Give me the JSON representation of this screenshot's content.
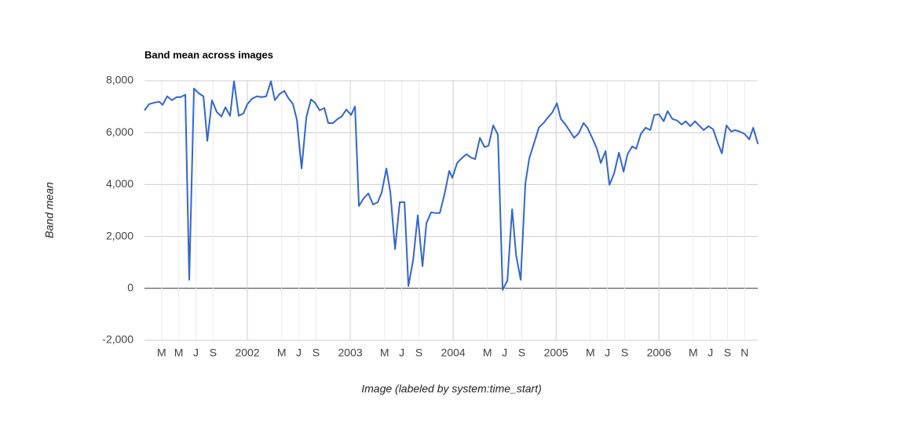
{
  "chart_data": {
    "type": "line",
    "title": "Band mean across images",
    "x_label": "Image (labeled by system:time_start)",
    "y_label": "Band mean",
    "color": "#3366cc",
    "grid": true,
    "xlim": [
      2001,
      2006.96
    ],
    "ylim": [
      -2000,
      8000
    ],
    "xticks": [
      {
        "value": 2001.167,
        "label": "M"
      },
      {
        "value": 2001.333,
        "label": "M"
      },
      {
        "value": 2001.5,
        "label": "J"
      },
      {
        "value": 2001.667,
        "label": "S"
      },
      2002,
      {
        "value": 2002.333,
        "label": "M"
      },
      {
        "value": 2002.5,
        "label": "J"
      },
      {
        "value": 2002.667,
        "label": "S"
      },
      2003,
      {
        "value": 2003.333,
        "label": "M"
      },
      {
        "value": 2003.5,
        "label": "J"
      },
      {
        "value": 2003.667,
        "label": "S"
      },
      2004,
      {
        "value": 2004.333,
        "label": "M"
      },
      {
        "value": 2004.5,
        "label": "J"
      },
      {
        "value": 2004.667,
        "label": "S"
      },
      2005,
      {
        "value": 2005.333,
        "label": "M"
      },
      {
        "value": 2005.5,
        "label": "J"
      },
      {
        "value": 2005.667,
        "label": "S"
      },
      2006,
      {
        "value": 2006.333,
        "label": "M"
      },
      {
        "value": 2006.5,
        "label": "J"
      },
      {
        "value": 2006.667,
        "label": "S"
      },
      {
        "value": 2006.833,
        "label": "N"
      }
    ],
    "yticks": [
      {
        "value": -2000,
        "label": "-2,000"
      },
      0,
      {
        "value": 2000,
        "label": "2,000"
      },
      {
        "value": 4000,
        "label": "4,000"
      },
      {
        "value": 6000,
        "label": "6,000"
      },
      {
        "value": 8000,
        "label": "8,000"
      }
    ],
    "x": [
      2001.0,
      2001.046,
      2001.099,
      2001.145,
      2001.176,
      2001.221,
      2001.267,
      2001.313,
      2001.351,
      2001.397,
      2001.435,
      2001.481,
      2001.527,
      2001.573,
      2001.611,
      2001.656,
      2001.702,
      2001.748,
      2001.786,
      2001.832,
      2001.87,
      2001.916,
      2001.962,
      2002.0,
      2002.046,
      2002.092,
      2002.137,
      2002.183,
      2002.229,
      2002.267,
      2002.313,
      2002.359,
      2002.397,
      2002.443,
      2002.481,
      2002.527,
      2002.573,
      2002.618,
      2002.656,
      2002.702,
      2002.748,
      2002.786,
      2002.832,
      2002.878,
      2002.916,
      2002.962,
      2003.008,
      2003.046,
      2003.084,
      2003.13,
      2003.176,
      2003.221,
      2003.267,
      2003.305,
      2003.351,
      2003.389,
      2003.435,
      2003.481,
      2003.527,
      2003.565,
      2003.611,
      2003.656,
      2003.702,
      2003.74,
      2003.786,
      2003.832,
      2003.87,
      2003.916,
      2003.962,
      2003.992,
      2004.038,
      2004.084,
      2004.13,
      2004.168,
      2004.214,
      2004.26,
      2004.305,
      2004.344,
      2004.389,
      2004.435,
      2004.481,
      2004.527,
      2004.573,
      2004.611,
      2004.656,
      2004.702,
      2004.74,
      2004.786,
      2004.832,
      2004.878,
      2004.916,
      2004.962,
      2005.008,
      2005.046,
      2005.092,
      2005.137,
      2005.176,
      2005.221,
      2005.267,
      2005.305,
      2005.351,
      2005.397,
      2005.435,
      2005.481,
      2005.519,
      2005.565,
      2005.611,
      2005.656,
      2005.695,
      2005.74,
      2005.779,
      2005.824,
      2005.87,
      2005.916,
      2005.954,
      2006.0,
      2006.046,
      2006.084,
      2006.13,
      2006.176,
      2006.221,
      2006.26,
      2006.305,
      2006.351,
      2006.389,
      2006.435,
      2006.481,
      2006.527,
      2006.565,
      2006.611,
      2006.656,
      2006.702,
      2006.74,
      2006.786,
      2006.832,
      2006.878,
      2006.916,
      2006.962
    ],
    "values": [
      6860,
      7100,
      7160,
      7190,
      7070,
      7400,
      7250,
      7370,
      7370,
      7460,
      330,
      7700,
      7520,
      7400,
      5680,
      7250,
      6800,
      6620,
      6980,
      6650,
      7980,
      6650,
      6740,
      7100,
      7310,
      7400,
      7370,
      7400,
      7980,
      7250,
      7490,
      7610,
      7340,
      7100,
      6500,
      4620,
      6590,
      7280,
      7160,
      6860,
      6950,
      6370,
      6370,
      6530,
      6620,
      6890,
      6680,
      7010,
      3170,
      3470,
      3660,
      3230,
      3320,
      3690,
      4620,
      3720,
      1510,
      3320,
      3320,
      90,
      1090,
      2810,
      850,
      2510,
      2930,
      2900,
      2900,
      3630,
      4530,
      4260,
      4830,
      5020,
      5170,
      5050,
      4980,
      5800,
      5440,
      5500,
      6280,
      5920,
      -60,
      300,
      3050,
      1300,
      330,
      4050,
      5020,
      5590,
      6190,
      6370,
      6560,
      6770,
      7130,
      6530,
      6310,
      6040,
      5800,
      5980,
      6370,
      6190,
      5800,
      5380,
      4830,
      5290,
      3990,
      4440,
      5230,
      4500,
      5170,
      5470,
      5380,
      5950,
      6190,
      6100,
      6680,
      6710,
      6440,
      6830,
      6530,
      6470,
      6310,
      6440,
      6250,
      6440,
      6280,
      6100,
      6250,
      6130,
      5680,
      5200,
      6280,
      6040,
      6100,
      6040,
      5950,
      5740,
      6190,
      5560
    ]
  }
}
